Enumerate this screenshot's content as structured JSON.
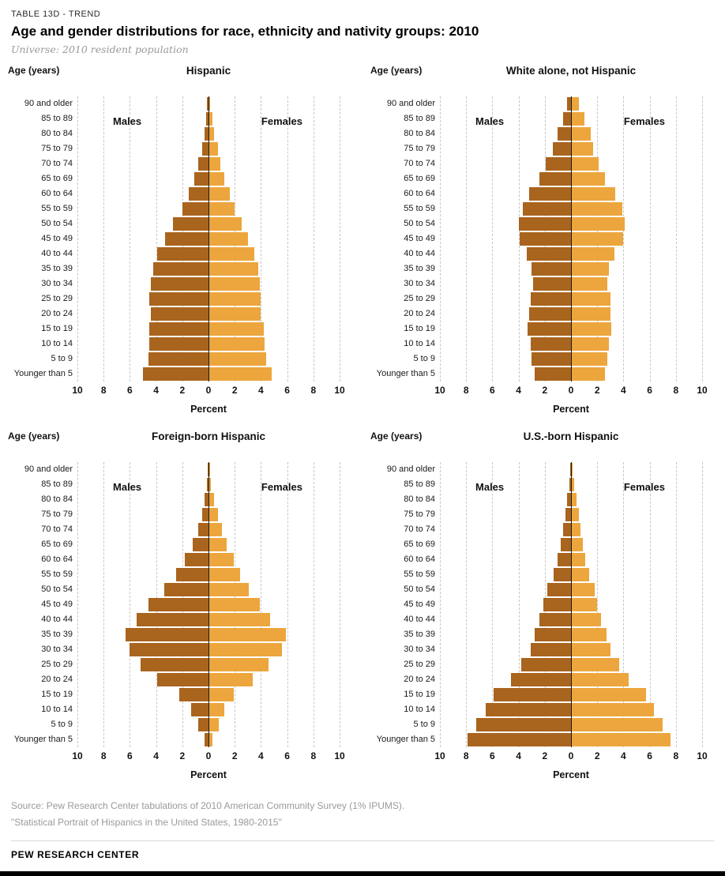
{
  "header": {
    "eyebrow": "TABLE 13D - TREND",
    "title": "Age and gender distributions for race, ethnicity and nativity groups: 2010",
    "subtitle": "Universe: 2010 resident population"
  },
  "footer": {
    "source": "Source: Pew Research Center tabulations of 2010 American Community Survey (1% IPUMS).",
    "note": "\"Statistical Portrait of Hispanics in the United States, 1980-2015\"",
    "brand": "PEW RESEARCH CENTER"
  },
  "colors": {
    "male": "#a9641e",
    "female": "#eca63d"
  },
  "chart_data": [
    {
      "type": "bar",
      "title": "Hispanic",
      "axis_label": "Age (years)",
      "xlabel": "Percent",
      "xlim": [
        -10,
        10
      ],
      "xticks": [
        10,
        8,
        6,
        4,
        2,
        0,
        2,
        4,
        6,
        8,
        10
      ],
      "grid": "dashed-vertical",
      "legend": {
        "left": "Males",
        "right": "Females"
      },
      "categories": [
        "90 and older",
        "85 to 89",
        "80 to 84",
        "75 to 79",
        "70 to 74",
        "65 to 69",
        "60 to 64",
        "55 to 59",
        "50 to 54",
        "45 to 49",
        "40 to 44",
        "35 to 39",
        "30 to 34",
        "25 to 29",
        "20 to 24",
        "15 to 19",
        "10 to 14",
        "5 to 9",
        "Younger than 5"
      ],
      "series": [
        {
          "name": "Males",
          "values": [
            0.1,
            0.2,
            0.3,
            0.5,
            0.8,
            1.1,
            1.5,
            2.0,
            2.7,
            3.3,
            3.9,
            4.2,
            4.4,
            4.5,
            4.4,
            4.5,
            4.5,
            4.6,
            5.0
          ]
        },
        {
          "name": "Females",
          "values": [
            0.1,
            0.3,
            0.4,
            0.7,
            0.9,
            1.2,
            1.6,
            2.0,
            2.5,
            3.0,
            3.5,
            3.8,
            3.9,
            4.0,
            4.0,
            4.2,
            4.3,
            4.4,
            4.8
          ]
        }
      ]
    },
    {
      "type": "bar",
      "title": "White alone, not Hispanic",
      "axis_label": "Age (years)",
      "xlabel": "Percent",
      "xlim": [
        -10,
        10
      ],
      "xticks": [
        10,
        8,
        6,
        4,
        2,
        0,
        2,
        4,
        6,
        8,
        10
      ],
      "grid": "dashed-vertical",
      "legend": {
        "left": "Males",
        "right": "Females"
      },
      "categories": [
        "90 and older",
        "85 to 89",
        "80 to 84",
        "75 to 79",
        "70 to 74",
        "65 to 69",
        "60 to 64",
        "55 to 59",
        "50 to 54",
        "45 to 49",
        "40 to 44",
        "35 to 39",
        "30 to 34",
        "25 to 29",
        "20 to 24",
        "15 to 19",
        "10 to 14",
        "5 to 9",
        "Younger than 5"
      ],
      "series": [
        {
          "name": "Males",
          "values": [
            0.3,
            0.6,
            1.0,
            1.4,
            1.9,
            2.4,
            3.2,
            3.7,
            4.0,
            3.9,
            3.4,
            3.0,
            2.9,
            3.1,
            3.2,
            3.3,
            3.1,
            3.0,
            2.8
          ]
        },
        {
          "name": "Females",
          "values": [
            0.6,
            1.0,
            1.5,
            1.7,
            2.1,
            2.6,
            3.4,
            3.9,
            4.1,
            4.0,
            3.3,
            2.9,
            2.8,
            3.0,
            3.0,
            3.1,
            2.9,
            2.8,
            2.6
          ]
        }
      ]
    },
    {
      "type": "bar",
      "title": "Foreign-born Hispanic",
      "axis_label": "Age (years)",
      "xlabel": "Percent",
      "xlim": [
        -10,
        10
      ],
      "xticks": [
        10,
        8,
        6,
        4,
        2,
        0,
        2,
        4,
        6,
        8,
        10
      ],
      "grid": "dashed-vertical",
      "legend": {
        "left": "Males",
        "right": "Females"
      },
      "categories": [
        "90 and older",
        "85 to 89",
        "80 to 84",
        "75 to 79",
        "70 to 74",
        "65 to 69",
        "60 to 64",
        "55 to 59",
        "50 to 54",
        "45 to 49",
        "40 to 44",
        "35 to 39",
        "30 to 34",
        "25 to 29",
        "20 to 24",
        "15 to 19",
        "10 to 14",
        "5 to 9",
        "Younger than 5"
      ],
      "series": [
        {
          "name": "Males",
          "values": [
            0.05,
            0.1,
            0.3,
            0.5,
            0.8,
            1.2,
            1.8,
            2.5,
            3.4,
            4.6,
            5.5,
            6.3,
            6.0,
            5.2,
            3.9,
            2.2,
            1.3,
            0.8,
            0.3
          ]
        },
        {
          "name": "Females",
          "values": [
            0.1,
            0.2,
            0.4,
            0.7,
            1.0,
            1.4,
            1.9,
            2.4,
            3.1,
            3.9,
            4.7,
            5.9,
            5.6,
            4.6,
            3.4,
            1.9,
            1.2,
            0.8,
            0.3
          ]
        }
      ]
    },
    {
      "type": "bar",
      "title": "U.S.-born Hispanic",
      "axis_label": "Age (years)",
      "xlabel": "Percent",
      "xlim": [
        -10,
        10
      ],
      "xticks": [
        10,
        8,
        6,
        4,
        2,
        0,
        2,
        4,
        6,
        8,
        10
      ],
      "grid": "dashed-vertical",
      "legend": {
        "left": "Males",
        "right": "Females"
      },
      "categories": [
        "90 and older",
        "85 to 89",
        "80 to 84",
        "75 to 79",
        "70 to 74",
        "65 to 69",
        "60 to 64",
        "55 to 59",
        "50 to 54",
        "45 to 49",
        "40 to 44",
        "35 to 39",
        "30 to 34",
        "25 to 29",
        "20 to 24",
        "15 to 19",
        "10 to 14",
        "5 to 9",
        "Younger than 5"
      ],
      "series": [
        {
          "name": "Males",
          "values": [
            0.05,
            0.15,
            0.3,
            0.45,
            0.6,
            0.8,
            1.0,
            1.3,
            1.8,
            2.1,
            2.4,
            2.8,
            3.1,
            3.8,
            4.6,
            5.9,
            6.5,
            7.2,
            7.9
          ]
        },
        {
          "name": "Females",
          "values": [
            0.1,
            0.25,
            0.4,
            0.6,
            0.7,
            0.9,
            1.1,
            1.4,
            1.8,
            2.0,
            2.3,
            2.7,
            3.0,
            3.7,
            4.4,
            5.7,
            6.3,
            7.0,
            7.6
          ]
        }
      ]
    }
  ]
}
